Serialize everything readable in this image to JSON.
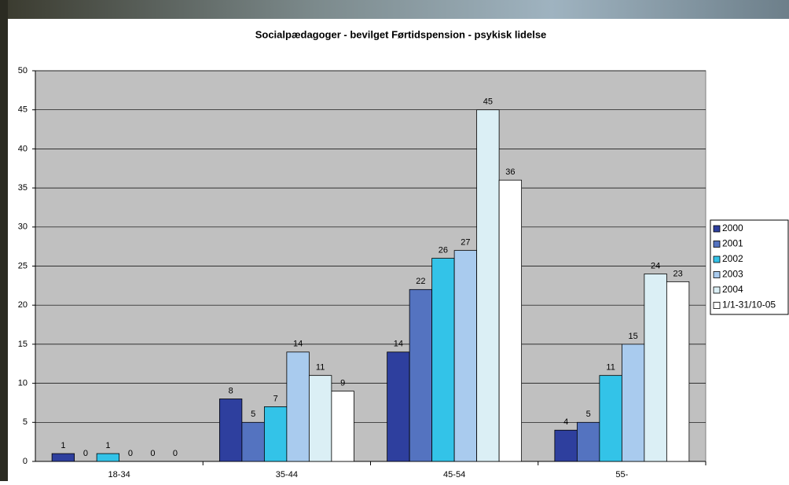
{
  "chart_data": {
    "type": "bar",
    "title": "Socialpædagoger - bevilget Førtidspension - psykisk lidelse",
    "categories": [
      "18-34",
      "35-44",
      "45-54",
      "55-"
    ],
    "series": [
      {
        "name": "2000",
        "color": "#2e3f9e",
        "values": [
          1,
          8,
          14,
          4
        ]
      },
      {
        "name": "2001",
        "color": "#5473c0",
        "values": [
          0,
          5,
          22,
          5
        ]
      },
      {
        "name": "2002",
        "color": "#33c3e8",
        "values": [
          1,
          7,
          26,
          11
        ]
      },
      {
        "name": "2003",
        "color": "#a9cbee",
        "values": [
          0,
          14,
          27,
          15
        ]
      },
      {
        "name": "2004",
        "color": "#dbeff5",
        "values": [
          0,
          11,
          45,
          24
        ]
      },
      {
        "name": "1/1-31/10-05",
        "color": "#ffffff",
        "values": [
          0,
          9,
          36,
          23
        ]
      }
    ],
    "ylim": [
      0,
      50
    ],
    "yticks": [
      0,
      5,
      10,
      15,
      20,
      25,
      30,
      35,
      40,
      45,
      50
    ],
    "grid": true,
    "legend": "right"
  }
}
